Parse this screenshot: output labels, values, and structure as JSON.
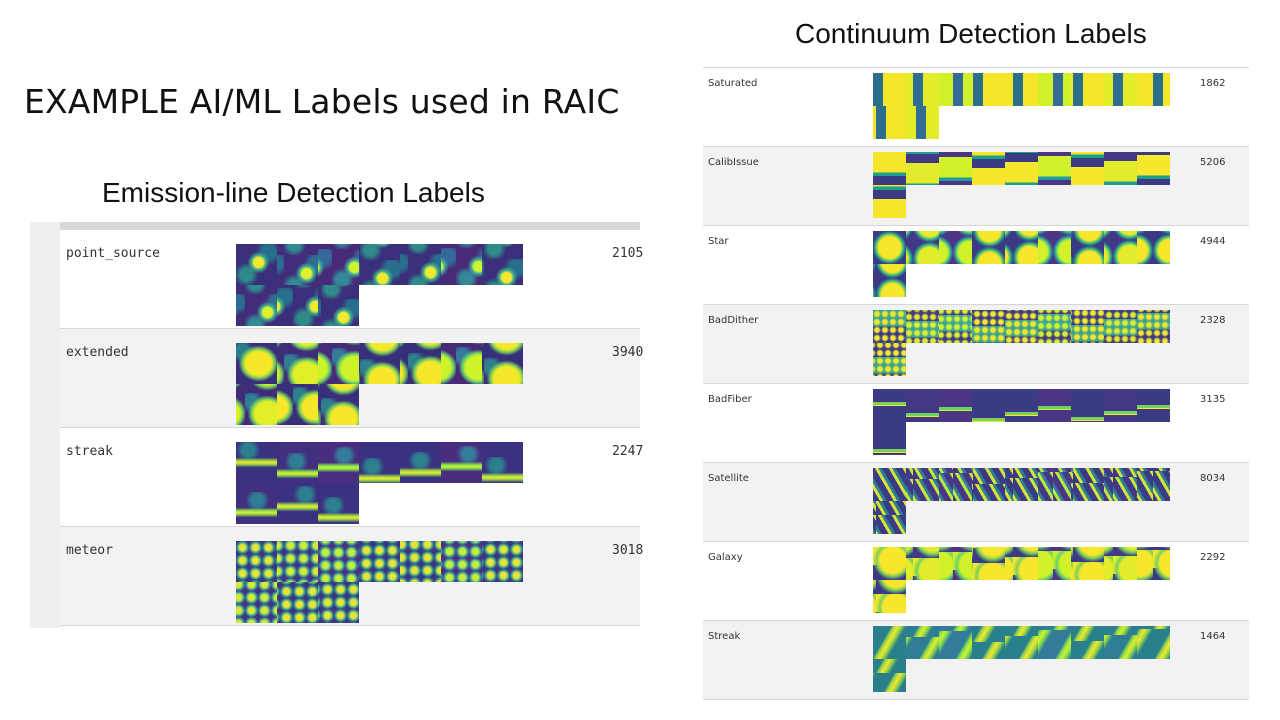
{
  "main_title": "EXAMPLE AI/ML Labels used in RAIC",
  "emission": {
    "title": "Emission-line Detection Labels",
    "rows": [
      {
        "label": "point_source",
        "count": "2105",
        "tiles": 10,
        "pattern": "t-point"
      },
      {
        "label": "extended",
        "count": "3940",
        "tiles": 10,
        "pattern": "t-ext"
      },
      {
        "label": "streak",
        "count": "2247",
        "tiles": 10,
        "pattern": "t-streak"
      },
      {
        "label": "meteor",
        "count": "3018",
        "tiles": 10,
        "pattern": "t-meteor"
      }
    ]
  },
  "continuum": {
    "title": "Continuum Detection Labels",
    "rows": [
      {
        "label": "Saturated",
        "count": "1862",
        "tiles": 11,
        "pattern": "t-sat"
      },
      {
        "label": "CalibIssue",
        "count": "5206",
        "tiles": 10,
        "pattern": "t-calib"
      },
      {
        "label": "Star",
        "count": "4944",
        "tiles": 10,
        "pattern": "t-star"
      },
      {
        "label": "BadDither",
        "count": "2328",
        "tiles": 10,
        "pattern": "t-dither"
      },
      {
        "label": "BadFiber",
        "count": "3135",
        "tiles": 10,
        "pattern": "t-fiber"
      },
      {
        "label": "Satellite",
        "count": "8034",
        "tiles": 10,
        "pattern": "t-satl"
      },
      {
        "label": "Galaxy",
        "count": "2292",
        "tiles": 10,
        "pattern": "t-gal"
      },
      {
        "label": "Streak",
        "count": "1464",
        "tiles": 10,
        "pattern": "t-cstreak"
      }
    ]
  }
}
